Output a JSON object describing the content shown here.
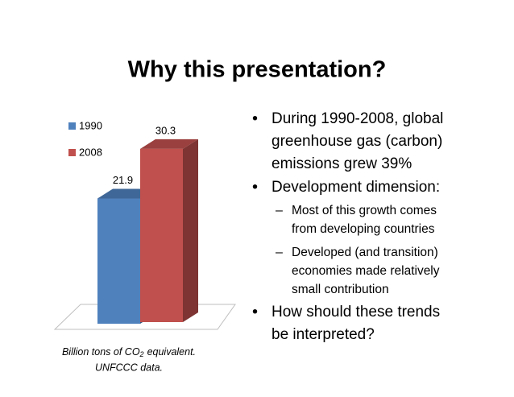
{
  "title": "Why this presentation?",
  "chart_data": {
    "type": "bar3d",
    "categories": [
      null
    ],
    "series": [
      {
        "name": "1990",
        "color": "#4f81bd",
        "values": [
          21.9
        ]
      },
      {
        "name": "2008",
        "color": "#c0504d",
        "values": [
          30.3
        ]
      }
    ],
    "legend": "left"
  },
  "caption": {
    "parts": [
      "Billion tons of CO",
      "2",
      "equivalent."
    ],
    "source": "UNFCCC data."
  },
  "bullets": [
    {
      "lines": [
        "During 1990-2008, global",
        "greenhouse gas (carbon)",
        "emissions grew 39%"
      ]
    },
    {
      "lines": [
        "Development dimension:"
      ],
      "sub": [
        {
          "lines": [
            "Most of this growth comes",
            "from developing countries"
          ]
        },
        {
          "lines": [
            "Developed (and transition)",
            "economies made relatively",
            "small contribution"
          ]
        }
      ]
    },
    {
      "lines": [
        "How should these trends",
        "be interpreted?"
      ]
    }
  ]
}
